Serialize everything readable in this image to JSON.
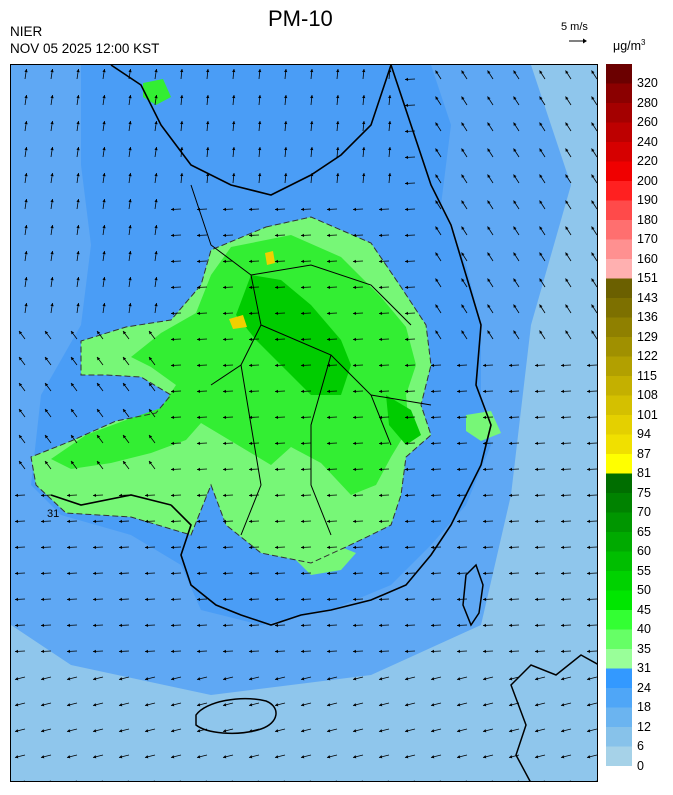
{
  "header": {
    "title": "PM-10",
    "agency": "NIER",
    "datetime": "NOV 05 2025 12:00 KST",
    "wind_reference": "5 m/s",
    "unit_base": "μg/m",
    "unit_exp": "3"
  },
  "legend": {
    "bins": [
      {
        "label": "320",
        "color": "#6b0000"
      },
      {
        "label": "280",
        "color": "#8b0000"
      },
      {
        "label": "260",
        "color": "#a40000"
      },
      {
        "label": "240",
        "color": "#bd0000"
      },
      {
        "label": "220",
        "color": "#d60000"
      },
      {
        "label": "200",
        "color": "#f00000"
      },
      {
        "label": "190",
        "color": "#ff2020"
      },
      {
        "label": "180",
        "color": "#ff4a4a"
      },
      {
        "label": "170",
        "color": "#ff6f6f"
      },
      {
        "label": "160",
        "color": "#ff9090"
      },
      {
        "label": "151",
        "color": "#ffb0b0"
      },
      {
        "label": "143",
        "color": "#6b6000"
      },
      {
        "label": "136",
        "color": "#7d7000"
      },
      {
        "label": "129",
        "color": "#8f8000"
      },
      {
        "label": "122",
        "color": "#a09000"
      },
      {
        "label": "115",
        "color": "#b2a000"
      },
      {
        "label": "108",
        "color": "#c4b000"
      },
      {
        "label": "101",
        "color": "#d4c000"
      },
      {
        "label": "94",
        "color": "#e4d000"
      },
      {
        "label": "87",
        "color": "#f0e000"
      },
      {
        "label": "81",
        "color": "#ffff00"
      },
      {
        "label": "75",
        "color": "#006e00"
      },
      {
        "label": "70",
        "color": "#008200"
      },
      {
        "label": "65",
        "color": "#009600"
      },
      {
        "label": "60",
        "color": "#00aa00"
      },
      {
        "label": "55",
        "color": "#00be00"
      },
      {
        "label": "50",
        "color": "#00d200"
      },
      {
        "label": "45",
        "color": "#00e600"
      },
      {
        "label": "40",
        "color": "#33ff33"
      },
      {
        "label": "35",
        "color": "#66ff66"
      },
      {
        "label": "31",
        "color": "#99ff99"
      },
      {
        "label": "24",
        "color": "#3399ff"
      },
      {
        "label": "18",
        "color": "#4fa6f7"
      },
      {
        "label": "12",
        "color": "#6bb4f0"
      },
      {
        "label": "6",
        "color": "#87c2ea"
      },
      {
        "label": "0",
        "color": "#a6d2e8"
      }
    ]
  },
  "map": {
    "contour_label": "31",
    "colors": {
      "ocean_far": "#8fc6ec",
      "ocean_near": "#5fa8f4",
      "land_low": "#4a9df6",
      "green_mid": "#33ee33",
      "green_light": "#77f777",
      "green_dark": "#00cc00",
      "yellow": "#f0d000",
      "coast": "#000000",
      "boundary": "#c8d8e8"
    }
  }
}
